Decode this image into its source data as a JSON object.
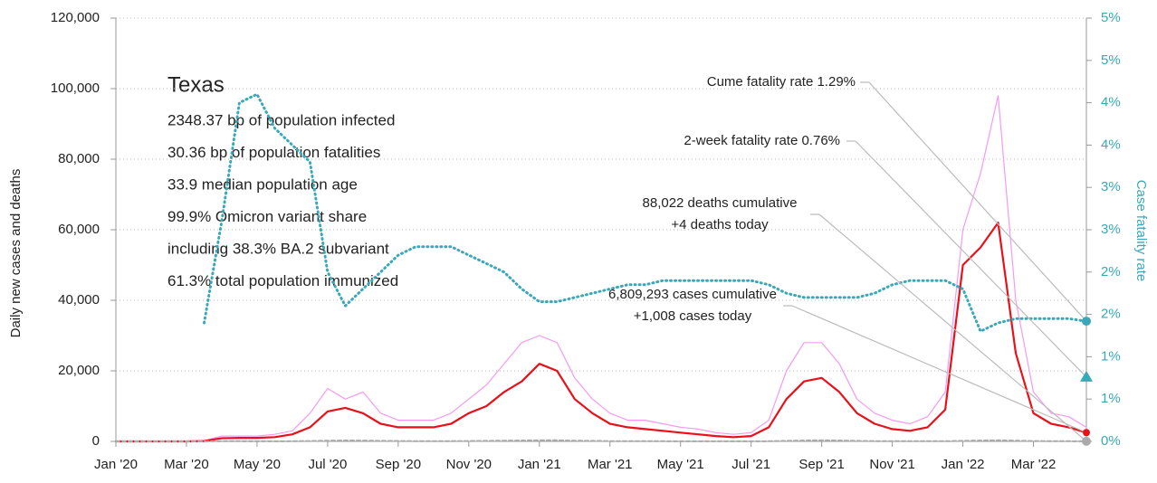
{
  "chart_data": {
    "type": "line",
    "y_label": "Daily new cases and deaths",
    "y2_label": "Case fatality rate",
    "categories": [
      "Jan '20",
      null,
      null,
      null,
      "Mar '20",
      null,
      null,
      null,
      "May '20",
      null,
      null,
      null,
      "Jul '20",
      null,
      null,
      null,
      "Sep '20",
      null,
      null,
      null,
      "Nov '20",
      null,
      null,
      null,
      "Jan '21",
      null,
      null,
      null,
      "Mar '21",
      null,
      null,
      null,
      "May '21",
      null,
      null,
      null,
      "Jul '21",
      null,
      null,
      null,
      "Sep '21",
      null,
      null,
      null,
      "Nov '21",
      null,
      null,
      null,
      "Jan '22",
      null,
      null,
      null,
      "Mar '22",
      null,
      null,
      null
    ],
    "ylim": [
      0,
      120000
    ],
    "yticks": [
      0,
      {
        "value": 20000,
        "label": "20,000"
      },
      {
        "value": 40000,
        "label": "40,000"
      },
      {
        "value": 60000,
        "label": "60,000"
      },
      {
        "value": 80000,
        "label": "80,000"
      },
      {
        "value": 100000,
        "label": "100,000"
      },
      {
        "value": 120000,
        "label": "120,000"
      }
    ],
    "y2lim": [
      0,
      5
    ],
    "y2ticks": [
      {
        "value": 0,
        "label": "0%"
      },
      {
        "value": 0.5,
        "label": "1%"
      },
      {
        "value": 1,
        "label": "1%"
      },
      {
        "value": 1.5,
        "label": "2%"
      },
      {
        "value": 2,
        "label": "2%"
      },
      {
        "value": 2.5,
        "label": "3%"
      },
      {
        "value": 3,
        "label": "3%"
      },
      {
        "value": 3.5,
        "label": "4%"
      },
      {
        "value": 4,
        "label": "4%"
      },
      {
        "value": 4.5,
        "label": "5%"
      },
      {
        "value": 5,
        "label": "5%"
      }
    ],
    "grid": true,
    "series": [
      {
        "color": "#f59af0",
        "width": 1.2,
        "values": [
          0,
          0,
          0,
          0,
          0,
          200,
          1500,
          1500,
          1500,
          2000,
          3000,
          8000,
          15000,
          12000,
          14000,
          8000,
          6000,
          6000,
          6000,
          8000,
          12000,
          16000,
          22000,
          28000,
          30000,
          28000,
          18000,
          12000,
          8000,
          6000,
          6000,
          5000,
          4000,
          3500,
          2500,
          2000,
          2500,
          6000,
          20000,
          28000,
          28000,
          22000,
          12000,
          8000,
          6000,
          5000,
          7000,
          14000,
          60000,
          76000,
          98000,
          40000,
          14000,
          8000,
          7000,
          4000
        ]
      },
      {
        "color": "#e8101a",
        "width": 2.2,
        "values": [
          0,
          0,
          0,
          0,
          0,
          100,
          900,
          1000,
          1000,
          1200,
          2000,
          4000,
          8500,
          9500,
          8000,
          5000,
          4000,
          4000,
          4000,
          5000,
          8000,
          10000,
          14000,
          17000,
          22000,
          20000,
          12000,
          8000,
          5000,
          4000,
          3500,
          3000,
          2500,
          2000,
          1500,
          1200,
          1500,
          4000,
          12000,
          17000,
          18000,
          14000,
          8000,
          5000,
          3500,
          3000,
          4000,
          9000,
          50000,
          55000,
          62000,
          25000,
          8000,
          5000,
          4000,
          2500
        ]
      },
      {
        "color": "#aaaaaa",
        "width": 2,
        "dash": "4 3",
        "values": [
          0,
          0,
          0,
          0,
          0,
          5,
          40,
          40,
          30,
          30,
          40,
          100,
          200,
          250,
          230,
          150,
          100,
          80,
          80,
          80,
          100,
          150,
          200,
          250,
          300,
          300,
          200,
          150,
          80,
          60,
          50,
          40,
          30,
          30,
          20,
          20,
          20,
          40,
          150,
          250,
          300,
          250,
          150,
          80,
          50,
          40,
          40,
          50,
          150,
          250,
          300,
          200,
          100,
          60,
          40,
          30
        ]
      },
      {
        "color": "#3aa8b8",
        "width": 3,
        "dash": "1 4",
        "axis": "y2",
        "values": [
          null,
          null,
          null,
          null,
          null,
          1.4,
          2.6,
          4.0,
          4.1,
          3.7,
          3.5,
          3.3,
          2.0,
          1.6,
          1.8,
          2.0,
          2.2,
          2.3,
          2.3,
          2.3,
          2.2,
          2.1,
          2.0,
          1.8,
          1.65,
          1.65,
          1.7,
          1.75,
          1.8,
          1.85,
          1.85,
          1.9,
          1.9,
          1.9,
          1.9,
          1.9,
          1.9,
          1.85,
          1.75,
          1.7,
          1.7,
          1.7,
          1.7,
          1.75,
          1.85,
          1.9,
          1.9,
          1.9,
          1.8,
          1.3,
          1.4,
          1.45,
          1.45,
          1.45,
          1.45,
          1.42
        ]
      }
    ],
    "two_week_rate": 0.76,
    "info": {
      "title": "Texas",
      "lines": [
        "2348.37 bp of population infected",
        "30.36 bp of population fatalities",
        "33.9 median population age",
        "99.9% Omicron variant share",
        "including 38.3% BA.2 subvariant",
        "61.3% total population immunized"
      ]
    },
    "annotations": [
      "Cume fatality rate 1.29%",
      "2-week fatality rate 0.76%",
      "88,022 deaths cumulative",
      "+4 deaths today",
      "6,809,293 cases cumulative",
      "+1,008 cases today"
    ]
  }
}
